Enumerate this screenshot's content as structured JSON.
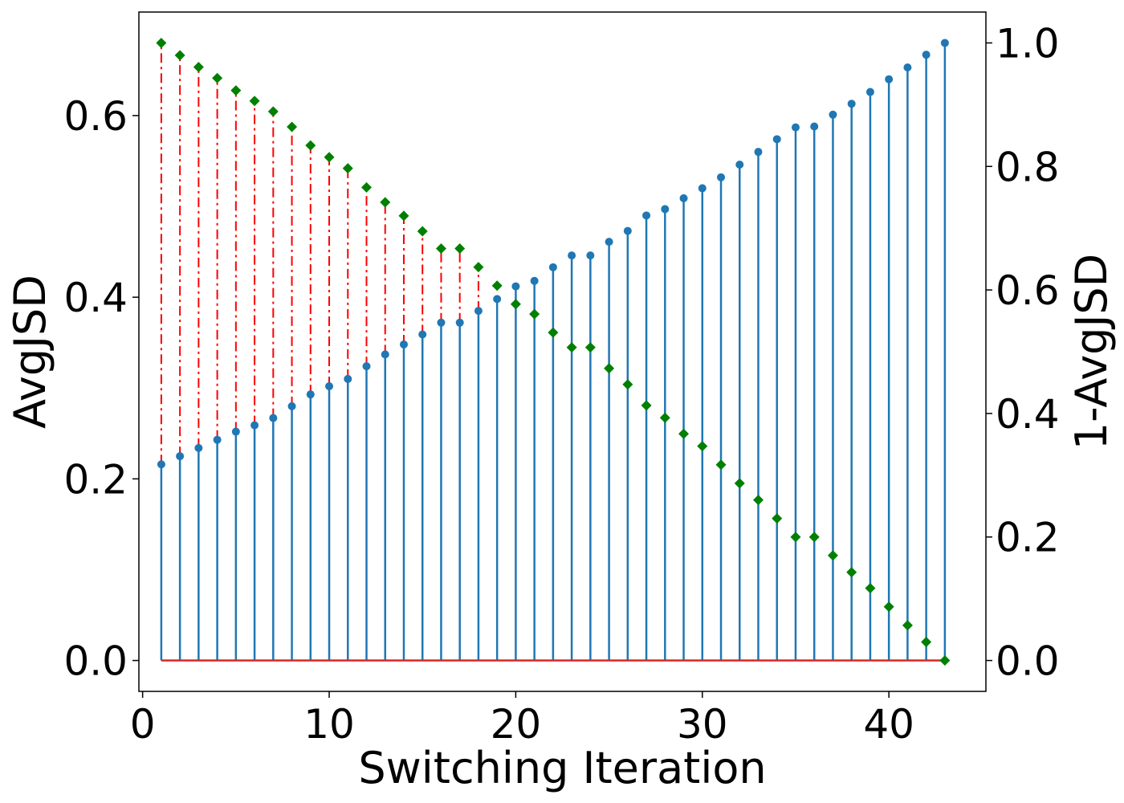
{
  "chart_data": {
    "type": "stem",
    "xlabel": "Switching Iteration",
    "ylabel_left": "AvgJSD",
    "ylabel_right": "1-AvgJSD",
    "xlim": [
      -0.2,
      45.2
    ],
    "ylim_left": [
      -0.034,
      0.714
    ],
    "ylim_right": [
      -0.05,
      1.05
    ],
    "x_ticks": [
      0,
      10,
      20,
      30,
      40
    ],
    "y_ticks_left": [
      0.0,
      0.2,
      0.4,
      0.6
    ],
    "y_ticks_right": [
      0.0,
      0.2,
      0.4,
      0.6,
      0.8,
      1.0
    ],
    "grid": false,
    "colors": {
      "avgjsd": "#1f77b4",
      "one_minus": "#008000",
      "stem_red": "#ff0000",
      "baseline": "#d62728"
    },
    "x": [
      1,
      2,
      3,
      4,
      5,
      6,
      7,
      8,
      9,
      10,
      11,
      12,
      13,
      14,
      15,
      16,
      17,
      18,
      19,
      20,
      21,
      22,
      23,
      24,
      25,
      26,
      27,
      28,
      29,
      30,
      31,
      32,
      33,
      34,
      35,
      36,
      37,
      38,
      39,
      40,
      41,
      42,
      43
    ],
    "series": [
      {
        "name": "AvgJSD",
        "axis": "left",
        "marker": "circle",
        "values": [
          0.216,
          0.225,
          0.234,
          0.243,
          0.252,
          0.259,
          0.267,
          0.28,
          0.293,
          0.302,
          0.31,
          0.324,
          0.337,
          0.348,
          0.359,
          0.372,
          0.372,
          0.385,
          0.398,
          0.412,
          0.418,
          0.433,
          0.446,
          0.446,
          0.461,
          0.473,
          0.49,
          0.497,
          0.509,
          0.52,
          0.532,
          0.546,
          0.56,
          0.574,
          0.587,
          0.588,
          0.601,
          0.613,
          0.626,
          0.64,
          0.653,
          0.667,
          0.68
        ]
      },
      {
        "name": "1-AvgJSD",
        "axis": "right",
        "marker": "diamond",
        "values": [
          1.0,
          0.98,
          0.961,
          0.943,
          0.923,
          0.906,
          0.889,
          0.864,
          0.834,
          0.815,
          0.797,
          0.766,
          0.742,
          0.72,
          0.695,
          0.667,
          0.667,
          0.637,
          0.607,
          0.577,
          0.561,
          0.531,
          0.507,
          0.507,
          0.473,
          0.447,
          0.413,
          0.393,
          0.367,
          0.347,
          0.317,
          0.287,
          0.26,
          0.23,
          0.2,
          0.2,
          0.17,
          0.143,
          0.117,
          0.087,
          0.057,
          0.03,
          0.0
        ]
      }
    ],
    "red_dashdot_stems_x": [
      1,
      2,
      3,
      4,
      5,
      6,
      7,
      8,
      9,
      10,
      11,
      12,
      13,
      14,
      15,
      16,
      17,
      18
    ]
  }
}
